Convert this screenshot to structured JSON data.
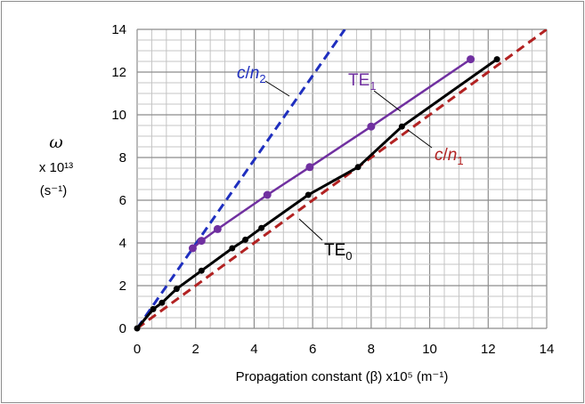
{
  "chart_data": {
    "type": "line",
    "title": "",
    "xlabel": "Propagation constant (β)  x10⁵  (m⁻¹)",
    "ylabel_symbol": "ω",
    "ylabel_scale": "x 10¹³",
    "ylabel_units": "(s⁻¹)",
    "xlim": [
      0,
      14
    ],
    "ylim": [
      0,
      14
    ],
    "xticks": [
      0,
      2,
      4,
      6,
      8,
      10,
      12,
      14
    ],
    "yticks": [
      0,
      2,
      4,
      6,
      8,
      10,
      12,
      14
    ],
    "minor_grid_step": 0.5,
    "grid": true,
    "series": [
      {
        "name": "c/n₂",
        "label": "c/n₂",
        "color": "#1f2fbf",
        "dash": true,
        "markers": false,
        "x": [
          0,
          7.1
        ],
        "y": [
          0,
          14
        ]
      },
      {
        "name": "c/n₁",
        "label": "c/n₁",
        "color": "#b22222",
        "dash": true,
        "markers": false,
        "x": [
          0,
          14
        ],
        "y": [
          0,
          14
        ]
      },
      {
        "name": "TE₁",
        "label": "TE₁",
        "color": "#7030a0",
        "dash": false,
        "markers": true,
        "x": [
          1.9,
          2.2,
          2.75,
          4.45,
          5.9,
          8.0,
          11.4
        ],
        "y": [
          3.75,
          4.1,
          4.65,
          6.25,
          7.55,
          9.45,
          12.6
        ]
      },
      {
        "name": "TE₀",
        "label": "TE₀",
        "color": "#000000",
        "dash": false,
        "markers": true,
        "x": [
          0,
          0.55,
          0.85,
          1.35,
          2.2,
          3.25,
          3.7,
          4.25,
          5.85,
          7.55,
          9.05,
          12.3
        ],
        "y": [
          0,
          0.9,
          1.2,
          1.85,
          2.7,
          3.75,
          4.15,
          4.7,
          6.25,
          7.55,
          9.45,
          12.6
        ]
      }
    ]
  }
}
